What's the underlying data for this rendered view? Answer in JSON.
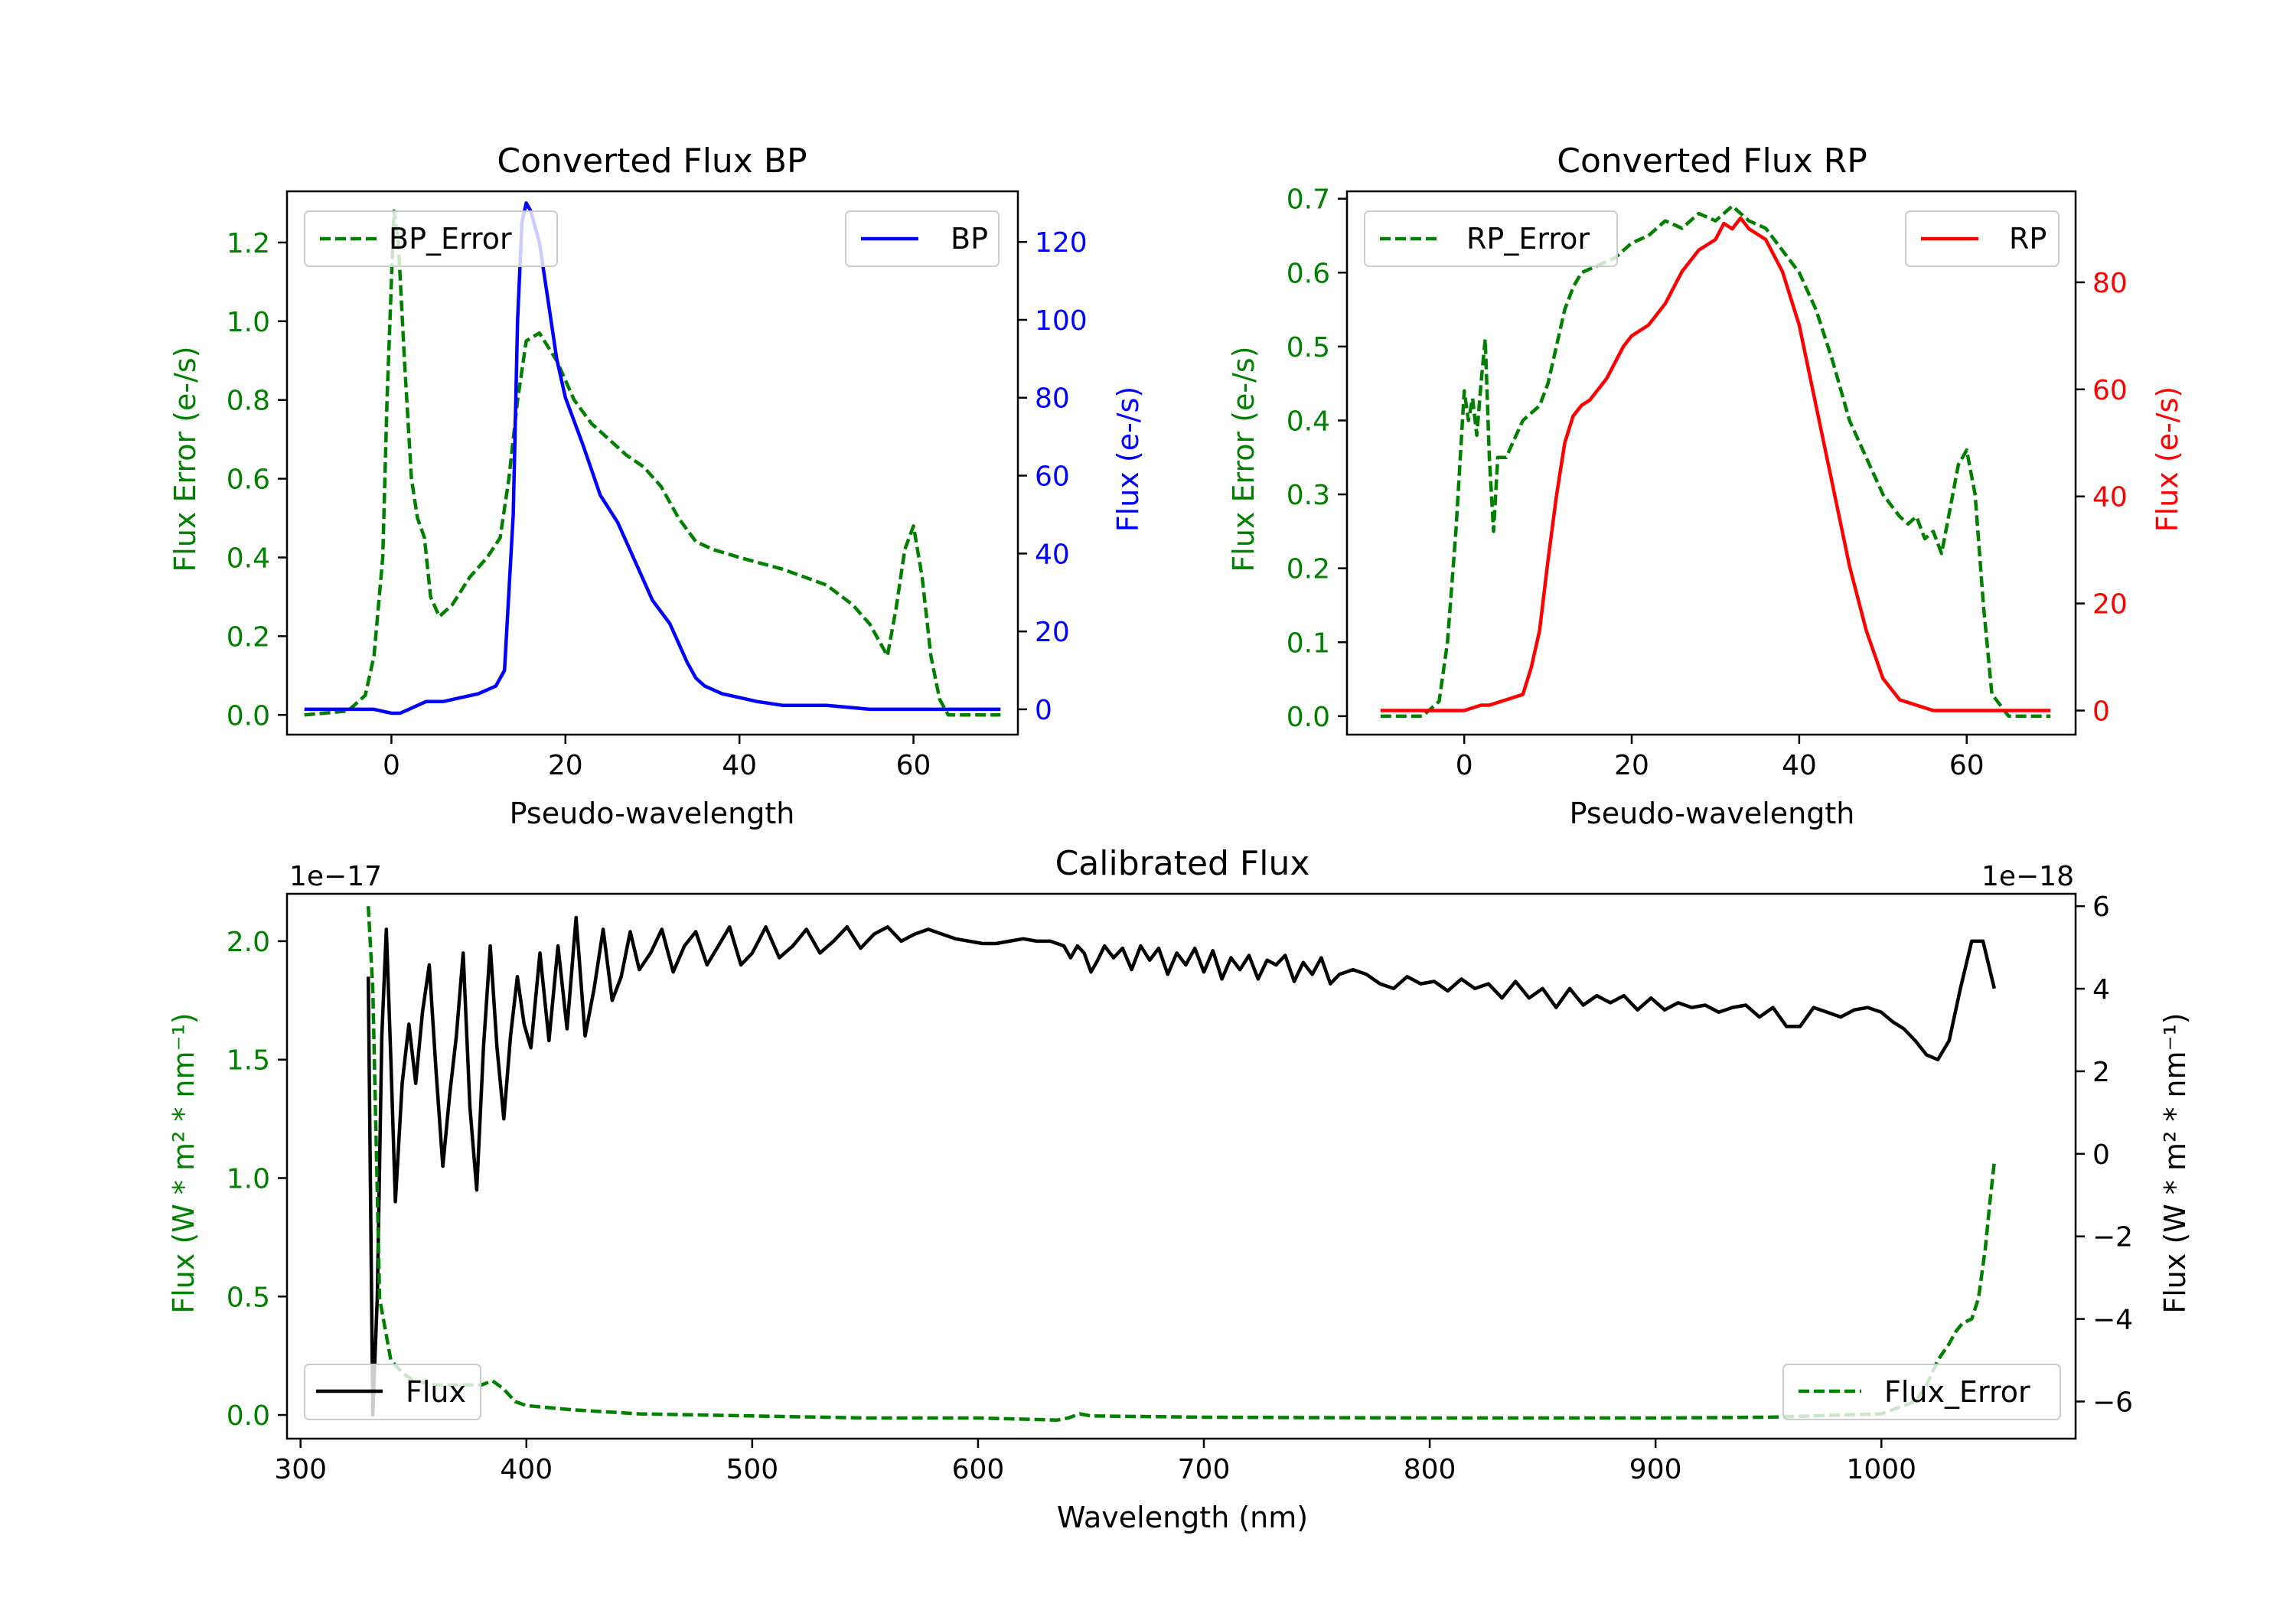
{
  "colors": {
    "bp": "#0000ff",
    "rp": "#ff0000",
    "error": "#008000",
    "flux": "#000000",
    "axis": "#000000"
  },
  "chart_data": [
    {
      "id": "bp",
      "type": "line",
      "title": "Converted Flux BP",
      "xlabel": "Pseudo-wavelength",
      "ylabel_left": "Flux Error (e-/s)",
      "ylabel_right": "Flux (e-/s)",
      "xlim": [
        -12,
        72
      ],
      "ylim_left": [
        -0.05,
        1.33
      ],
      "ylim_right": [
        -6.5,
        133
      ],
      "xticks": [
        0,
        20,
        40,
        60
      ],
      "xtick_labels": [
        "0",
        "20",
        "40",
        "60"
      ],
      "yticks_left": [
        0.0,
        0.2,
        0.4,
        0.6,
        0.8,
        1.0,
        1.2
      ],
      "ytick_labels_left": [
        "0.0",
        "0.2",
        "0.4",
        "0.6",
        "0.8",
        "1.0",
        "1.2"
      ],
      "yticks_right": [
        0,
        20,
        40,
        60,
        80,
        100,
        120
      ],
      "ytick_labels_right": [
        "0",
        "20",
        "40",
        "60",
        "80",
        "100",
        "120"
      ],
      "legend_left": {
        "label": "BP_Error",
        "placement": "upper-left"
      },
      "legend_right": {
        "label": "BP",
        "placement": "upper-right"
      },
      "series": [
        {
          "name": "BP_Error",
          "axis": "left",
          "style": "dashed",
          "color": "#008000",
          "x": [
            -10,
            -5,
            -3,
            -2,
            -1,
            -0.5,
            0,
            0.3,
            0.8,
            1.5,
            2.3,
            3,
            3.8,
            4.5,
            5.5,
            7,
            9,
            11,
            12.5,
            13.5,
            14.5,
            15.5,
            17,
            19,
            21,
            23,
            25,
            27,
            29,
            31,
            33,
            35,
            37,
            40,
            45,
            50,
            53,
            55,
            56,
            57,
            58,
            59,
            60,
            61,
            62,
            63,
            64,
            66,
            70
          ],
          "y": [
            0.0,
            0.01,
            0.05,
            0.15,
            0.4,
            0.8,
            1.1,
            1.28,
            1.2,
            0.9,
            0.6,
            0.5,
            0.45,
            0.3,
            0.25,
            0.28,
            0.35,
            0.4,
            0.45,
            0.6,
            0.8,
            0.95,
            0.97,
            0.9,
            0.8,
            0.74,
            0.7,
            0.66,
            0.63,
            0.58,
            0.5,
            0.44,
            0.42,
            0.4,
            0.37,
            0.33,
            0.28,
            0.23,
            0.19,
            0.15,
            0.27,
            0.42,
            0.48,
            0.35,
            0.15,
            0.04,
            0.0,
            0.0,
            0.0
          ]
        },
        {
          "name": "BP",
          "axis": "right",
          "style": "solid",
          "color": "#0000ff",
          "x": [
            -10,
            -5,
            -2,
            0,
            1,
            2,
            4,
            6,
            8,
            10,
            12,
            13,
            14,
            14.5,
            15,
            15.5,
            16,
            17,
            18,
            19,
            20,
            22,
            24,
            26,
            28,
            30,
            32,
            34,
            35,
            36,
            38,
            40,
            42,
            45,
            48,
            50,
            55,
            60,
            65,
            70
          ],
          "y": [
            0,
            0,
            0,
            -1,
            -1,
            0,
            2,
            2,
            3,
            4,
            6,
            10,
            50,
            100,
            125,
            130,
            128,
            120,
            105,
            90,
            80,
            68,
            55,
            48,
            38,
            28,
            22,
            12,
            8,
            6,
            4,
            3,
            2,
            1,
            1,
            1,
            0,
            0,
            0,
            0
          ]
        }
      ]
    },
    {
      "id": "rp",
      "type": "line",
      "title": "Converted Flux RP",
      "xlabel": "Pseudo-wavelength",
      "ylabel_left": "Flux Error (e-/s)",
      "ylabel_right": "Flux (e-/s)",
      "xlim": [
        -14,
        73
      ],
      "ylim_left": [
        -0.025,
        0.71
      ],
      "ylim_right": [
        -4.5,
        97
      ],
      "xticks": [
        0,
        20,
        40,
        60
      ],
      "xtick_labels": [
        "0",
        "20",
        "40",
        "60"
      ],
      "yticks_left": [
        0.0,
        0.1,
        0.2,
        0.3,
        0.4,
        0.5,
        0.6,
        0.7
      ],
      "ytick_labels_left": [
        "0.0",
        "0.1",
        "0.2",
        "0.3",
        "0.4",
        "0.5",
        "0.6",
        "0.7"
      ],
      "yticks_right": [
        0,
        20,
        40,
        60,
        80
      ],
      "ytick_labels_right": [
        "0",
        "20",
        "40",
        "60",
        "80"
      ],
      "legend_left": {
        "label": "RP_Error",
        "placement": "upper-left"
      },
      "legend_right": {
        "label": "RP",
        "placement": "upper-right"
      },
      "series": [
        {
          "name": "RP_Error",
          "axis": "left",
          "style": "dashed",
          "color": "#008000",
          "x": [
            -10,
            -5,
            -3,
            -2,
            -1,
            0,
            0.5,
            1,
            1.5,
            2,
            2.5,
            3,
            3.5,
            4,
            5,
            7,
            9,
            10,
            12,
            13,
            14,
            16,
            18,
            20,
            22,
            24,
            26,
            28,
            30,
            32,
            34,
            36,
            38,
            40,
            42,
            44,
            46,
            48,
            50,
            52,
            53,
            54,
            55,
            56,
            57,
            58,
            59,
            60,
            61,
            62,
            63,
            65,
            70
          ],
          "y": [
            0.0,
            0.0,
            0.02,
            0.1,
            0.25,
            0.44,
            0.4,
            0.43,
            0.38,
            0.45,
            0.51,
            0.35,
            0.25,
            0.35,
            0.35,
            0.4,
            0.42,
            0.45,
            0.55,
            0.58,
            0.6,
            0.61,
            0.62,
            0.64,
            0.65,
            0.67,
            0.66,
            0.68,
            0.67,
            0.69,
            0.67,
            0.66,
            0.63,
            0.6,
            0.55,
            0.48,
            0.4,
            0.35,
            0.3,
            0.27,
            0.26,
            0.27,
            0.24,
            0.25,
            0.22,
            0.28,
            0.34,
            0.36,
            0.3,
            0.15,
            0.03,
            0.0,
            0.0
          ]
        },
        {
          "name": "RP",
          "axis": "right",
          "style": "solid",
          "color": "#ff0000",
          "x": [
            -10,
            -5,
            0,
            2,
            3,
            5,
            7,
            8,
            9,
            10,
            11,
            12,
            13,
            14,
            15,
            17,
            18,
            19,
            20,
            22,
            24,
            26,
            28,
            30,
            31,
            32,
            33,
            34,
            36,
            38,
            40,
            42,
            44,
            46,
            48,
            50,
            52,
            54,
            56,
            58,
            60,
            65,
            70
          ],
          "y": [
            0,
            0,
            0,
            1,
            1,
            2,
            3,
            8,
            15,
            28,
            40,
            50,
            55,
            57,
            58,
            62,
            65,
            68,
            70,
            72,
            76,
            82,
            86,
            88,
            91,
            90,
            92,
            90,
            88,
            82,
            72,
            57,
            42,
            27,
            15,
            6,
            2,
            1,
            0,
            0,
            0,
            0,
            0
          ]
        }
      ]
    },
    {
      "id": "calibrated",
      "type": "line",
      "title": "Calibrated Flux",
      "xlabel": "Wavelength (nm)",
      "ylabel_left": "Flux (W * m² * nm⁻¹)",
      "ylabel_right": "Flux (W * m² * nm⁻¹)",
      "offset_left": "1e−17",
      "offset_right": "1e−18",
      "xlim": [
        294,
        1086
      ],
      "ylim_left": [
        -0.1,
        2.2
      ],
      "ylim_right": [
        -6.9,
        6.3
      ],
      "xticks": [
        300,
        400,
        500,
        600,
        700,
        800,
        900,
        1000
      ],
      "xtick_labels": [
        "300",
        "400",
        "500",
        "600",
        "700",
        "800",
        "900",
        "1000"
      ],
      "yticks_left": [
        0.0,
        0.5,
        1.0,
        1.5,
        2.0
      ],
      "ytick_labels_left": [
        "0.0",
        "0.5",
        "1.0",
        "1.5",
        "2.0"
      ],
      "yticks_right": [
        -6,
        -4,
        -2,
        0,
        2,
        4,
        6
      ],
      "ytick_labels_right": [
        "−6",
        "−4",
        "−2",
        "0",
        "2",
        "4",
        "6"
      ],
      "legend_left": {
        "label": "Flux",
        "placement": "lower-left"
      },
      "legend_right": {
        "label": "Flux_Error",
        "placement": "lower-right"
      },
      "series": [
        {
          "name": "Flux",
          "axis": "left",
          "style": "solid",
          "color": "#000000",
          "x": [
            330,
            332,
            334,
            336,
            338,
            340,
            342,
            345,
            348,
            351,
            354,
            357,
            360,
            363,
            366,
            369,
            372,
            375,
            378,
            381,
            384,
            387,
            390,
            393,
            396,
            399,
            402,
            406,
            410,
            414,
            418,
            422,
            426,
            430,
            434,
            438,
            442,
            446,
            450,
            455,
            460,
            465,
            470,
            475,
            480,
            485,
            490,
            495,
            500,
            506,
            512,
            518,
            524,
            530,
            536,
            542,
            548,
            554,
            560,
            566,
            572,
            578,
            584,
            590,
            596,
            602,
            608,
            614,
            620,
            626,
            632,
            638,
            641,
            644,
            647,
            650,
            653,
            656,
            660,
            664,
            668,
            672,
            676,
            680,
            684,
            688,
            692,
            696,
            700,
            704,
            708,
            712,
            716,
            720,
            724,
            728,
            732,
            736,
            740,
            744,
            748,
            752,
            756,
            760,
            766,
            772,
            778,
            784,
            790,
            796,
            802,
            808,
            814,
            820,
            826,
            832,
            838,
            844,
            850,
            856,
            862,
            868,
            874,
            880,
            886,
            892,
            898,
            904,
            910,
            916,
            922,
            928,
            934,
            940,
            946,
            952,
            958,
            964,
            970,
            976,
            982,
            988,
            994,
            1000,
            1005,
            1010,
            1015,
            1020,
            1025,
            1030,
            1035,
            1040,
            1045,
            1050
          ],
          "y": [
            1.85,
            0.0,
            0.5,
            1.6,
            2.05,
            1.5,
            0.9,
            1.4,
            1.65,
            1.4,
            1.7,
            1.9,
            1.45,
            1.05,
            1.35,
            1.6,
            1.95,
            1.3,
            0.95,
            1.55,
            1.98,
            1.55,
            1.25,
            1.6,
            1.85,
            1.65,
            1.55,
            1.95,
            1.58,
            1.98,
            1.63,
            2.1,
            1.6,
            1.8,
            2.05,
            1.75,
            1.85,
            2.04,
            1.88,
            1.95,
            2.05,
            1.87,
            1.98,
            2.04,
            1.9,
            1.98,
            2.06,
            1.9,
            1.95,
            2.06,
            1.93,
            1.98,
            2.05,
            1.95,
            2.0,
            2.06,
            1.97,
            2.03,
            2.06,
            2.0,
            2.03,
            2.05,
            2.03,
            2.01,
            2.0,
            1.99,
            1.99,
            2.0,
            2.01,
            2.0,
            2.0,
            1.98,
            1.93,
            1.98,
            1.95,
            1.87,
            1.92,
            1.98,
            1.93,
            1.97,
            1.88,
            1.98,
            1.92,
            1.97,
            1.86,
            1.95,
            1.9,
            1.97,
            1.87,
            1.96,
            1.84,
            1.93,
            1.88,
            1.94,
            1.84,
            1.92,
            1.9,
            1.94,
            1.83,
            1.91,
            1.86,
            1.93,
            1.82,
            1.86,
            1.88,
            1.86,
            1.82,
            1.8,
            1.85,
            1.82,
            1.83,
            1.79,
            1.84,
            1.8,
            1.82,
            1.76,
            1.83,
            1.76,
            1.8,
            1.72,
            1.8,
            1.73,
            1.77,
            1.74,
            1.77,
            1.71,
            1.76,
            1.71,
            1.74,
            1.72,
            1.73,
            1.7,
            1.72,
            1.73,
            1.68,
            1.72,
            1.64,
            1.64,
            1.72,
            1.7,
            1.68,
            1.71,
            1.72,
            1.7,
            1.66,
            1.63,
            1.58,
            1.52,
            1.5,
            1.58,
            1.8,
            2.0,
            2.0,
            1.8
          ]
        },
        {
          "name": "Flux_Error",
          "axis": "right",
          "style": "dashed",
          "color": "#008000",
          "x": [
            330,
            332,
            335,
            340,
            345,
            350,
            360,
            370,
            380,
            385,
            390,
            395,
            400,
            420,
            450,
            500,
            550,
            600,
            635,
            640,
            645,
            650,
            700,
            800,
            900,
            950,
            1000,
            1010,
            1015,
            1020,
            1025,
            1030,
            1033,
            1036,
            1040,
            1043,
            1046,
            1048,
            1050
          ],
          "y": [
            6.0,
            4.0,
            -3.5,
            -5.0,
            -5.3,
            -5.5,
            -5.6,
            -5.6,
            -5.6,
            -5.5,
            -5.7,
            -6.0,
            -6.1,
            -6.2,
            -6.3,
            -6.35,
            -6.4,
            -6.4,
            -6.45,
            -6.4,
            -6.3,
            -6.35,
            -6.38,
            -6.4,
            -6.4,
            -6.38,
            -6.3,
            -6.1,
            -6.0,
            -5.6,
            -5.0,
            -4.6,
            -4.3,
            -4.1,
            -4.0,
            -3.5,
            -2.3,
            -1.2,
            -0.2
          ]
        }
      ]
    }
  ]
}
